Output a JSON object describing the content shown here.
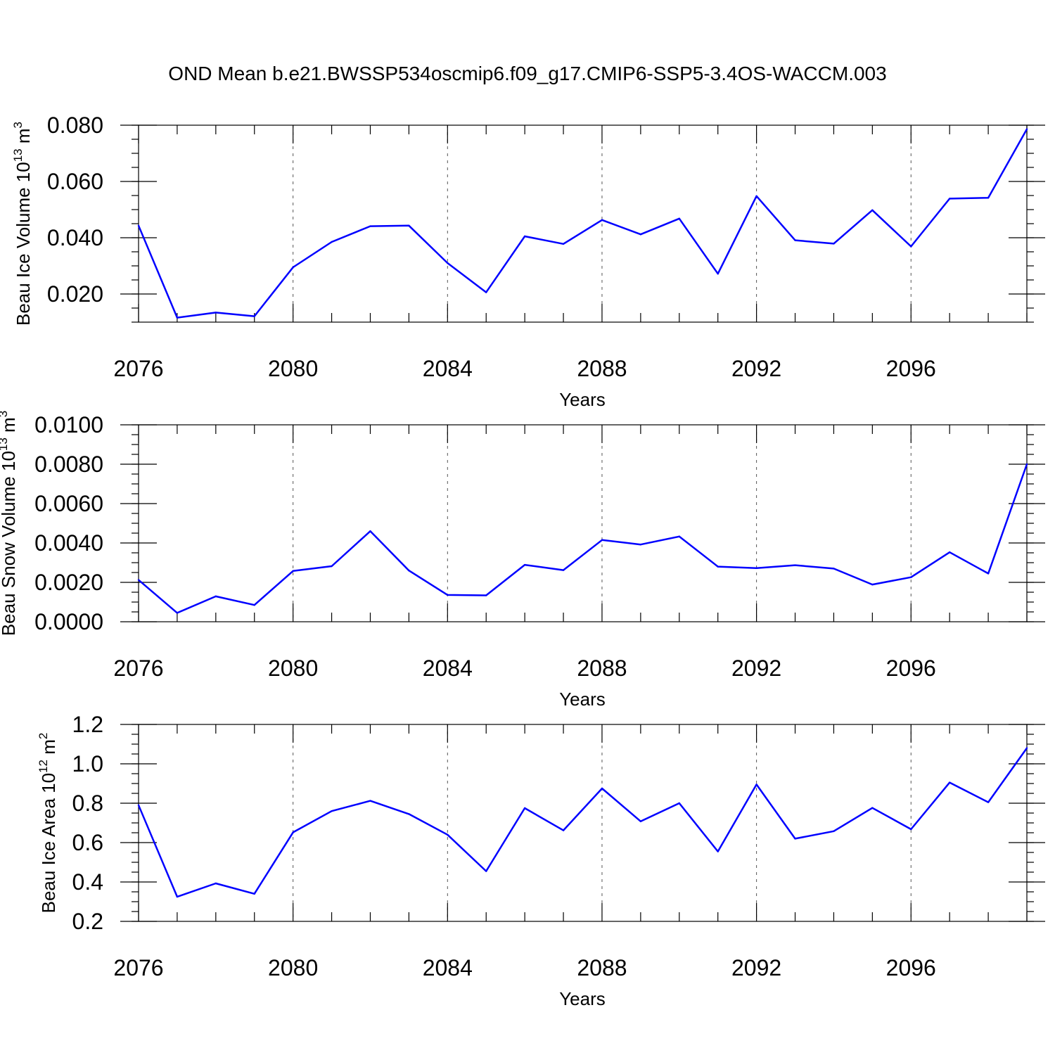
{
  "figure_title": "OND Mean b.e21.BWSSP534oscmip6.f09_g17.CMIP6-SSP5-3.4OS-WACCM.003",
  "series_color": "#0000ff",
  "chart_data": [
    {
      "type": "line",
      "name": "ice-volume",
      "ylabel": "Beau Ice Volume 10",
      "ylabel_sup": "13",
      "ylabel_unit": " m",
      "ylabel_unit_sup": "3",
      "xlabel": "Years",
      "xlim": [
        2076,
        2099
      ],
      "ylim": [
        0.01,
        0.08
      ],
      "x_ticks": [
        2076,
        2080,
        2084,
        2088,
        2092,
        2096
      ],
      "x_tick_labels": [
        "2076",
        "2080",
        "2084",
        "2088",
        "2092",
        "2096"
      ],
      "y_ticks": [
        0.02,
        0.04,
        0.06,
        0.08
      ],
      "y_tick_labels": [
        "0.020",
        "0.040",
        "0.060",
        "0.080"
      ],
      "y_minor_step": 0.005,
      "x": [
        2076,
        2077,
        2078,
        2079,
        2080,
        2081,
        2082,
        2083,
        2084,
        2085,
        2086,
        2087,
        2088,
        2089,
        2090,
        2091,
        2092,
        2093,
        2094,
        2095,
        2096,
        2097,
        2098,
        2099
      ],
      "values": [
        0.0443,
        0.0116,
        0.0134,
        0.0121,
        0.0295,
        0.0385,
        0.0441,
        0.0443,
        0.031,
        0.0206,
        0.0405,
        0.0378,
        0.0463,
        0.0412,
        0.0468,
        0.0272,
        0.0548,
        0.0391,
        0.0379,
        0.0498,
        0.0369,
        0.0539,
        0.0542,
        0.0786
      ]
    },
    {
      "type": "line",
      "name": "snow-volume",
      "ylabel": "Beau Snow Volume 10",
      "ylabel_sup": "13",
      "ylabel_unit": " m",
      "ylabel_unit_sup": "3",
      "xlabel": "Years",
      "xlim": [
        2076,
        2099
      ],
      "ylim": [
        0.0,
        0.01
      ],
      "x_ticks": [
        2076,
        2080,
        2084,
        2088,
        2092,
        2096
      ],
      "x_tick_labels": [
        "2076",
        "2080",
        "2084",
        "2088",
        "2092",
        "2096"
      ],
      "y_ticks": [
        0.0,
        0.002,
        0.004,
        0.006,
        0.008,
        0.01
      ],
      "y_tick_labels": [
        "0.0000",
        "0.0020",
        "0.0040",
        "0.0060",
        "0.0080",
        "0.0100"
      ],
      "y_minor_step": 0.0005,
      "x": [
        2076,
        2077,
        2078,
        2079,
        2080,
        2081,
        2082,
        2083,
        2084,
        2085,
        2086,
        2087,
        2088,
        2089,
        2090,
        2091,
        2092,
        2093,
        2094,
        2095,
        2096,
        2097,
        2098,
        2099
      ],
      "values": [
        0.00212,
        0.00045,
        0.00129,
        0.00085,
        0.00258,
        0.00282,
        0.0046,
        0.0026,
        0.00136,
        0.00134,
        0.00289,
        0.00262,
        0.00415,
        0.00392,
        0.00433,
        0.0028,
        0.00272,
        0.00287,
        0.0027,
        0.00189,
        0.00226,
        0.00353,
        0.00245,
        0.008
      ]
    },
    {
      "type": "line",
      "name": "ice-area",
      "ylabel": "Beau Ice Area 10",
      "ylabel_sup": "12",
      "ylabel_unit": " m",
      "ylabel_unit_sup": "2",
      "xlabel": "Years",
      "xlim": [
        2076,
        2099
      ],
      "ylim": [
        0.2,
        1.2
      ],
      "x_ticks": [
        2076,
        2080,
        2084,
        2088,
        2092,
        2096
      ],
      "x_tick_labels": [
        "2076",
        "2080",
        "2084",
        "2088",
        "2092",
        "2096"
      ],
      "y_ticks": [
        0.2,
        0.4,
        0.6,
        0.8,
        1.0,
        1.2
      ],
      "y_tick_labels": [
        "0.2",
        "0.4",
        "0.6",
        "0.8",
        "1.0",
        "1.2"
      ],
      "y_minor_step": 0.05,
      "x": [
        2076,
        2077,
        2078,
        2079,
        2080,
        2081,
        2082,
        2083,
        2084,
        2085,
        2086,
        2087,
        2088,
        2089,
        2090,
        2091,
        2092,
        2093,
        2094,
        2095,
        2096,
        2097,
        2098,
        2099
      ],
      "values": [
        0.79,
        0.325,
        0.393,
        0.34,
        0.652,
        0.76,
        0.812,
        0.745,
        0.64,
        0.455,
        0.775,
        0.662,
        0.875,
        0.708,
        0.8,
        0.555,
        0.895,
        0.62,
        0.658,
        0.776,
        0.668,
        0.905,
        0.805,
        1.08
      ]
    }
  ]
}
